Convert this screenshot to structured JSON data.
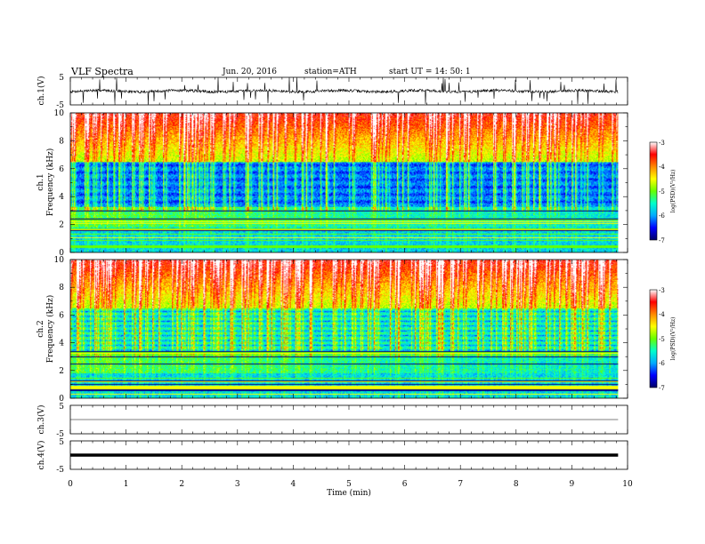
{
  "header": {
    "title": "VLF  Spectra",
    "date": "Jun. 20, 2016",
    "station": "station=ATH",
    "start": "start  UT =   14: 50: 1"
  },
  "chart_data": [
    {
      "type": "line",
      "ylabel": "ch.1(V)",
      "ylim": [
        -5,
        5
      ],
      "yticks": [
        "5",
        "-5"
      ],
      "xlim": [
        0,
        10
      ],
      "data_end_min": 9.83,
      "baseline": 0,
      "series_color": "#000000"
    },
    {
      "type": "heatmap",
      "ylabel_lines": [
        "ch.1",
        "Frequency  (kHz)"
      ],
      "ylim": [
        0,
        10
      ],
      "yticks": [
        "0",
        "2",
        "4",
        "6",
        "8",
        "10"
      ],
      "xlim": [
        0,
        10
      ],
      "data_end_min": 9.83,
      "colorbar": {
        "label": "log(PSD)(V²/Hz)",
        "range": [
          -7,
          -3
        ],
        "ticks": [
          "-3",
          "-4",
          "-5",
          "-6",
          "-7"
        ],
        "colors": [
          "#000066",
          "#0000ff",
          "#00aaff",
          "#00ffcc",
          "#66ff00",
          "#ffff00",
          "#ff8800",
          "#ff0000",
          "#ffffff"
        ]
      }
    },
    {
      "type": "heatmap",
      "ylabel_lines": [
        "ch.2",
        "Frequency  (kHz)"
      ],
      "ylim": [
        0,
        10
      ],
      "yticks": [
        "0",
        "2",
        "4",
        "6",
        "8",
        "10"
      ],
      "xlim": [
        0,
        10
      ],
      "data_end_min": 9.83,
      "colorbar": {
        "label": "log(PSD)(V²/Hz)",
        "range": [
          -7,
          -3
        ],
        "ticks": [
          "-3",
          "-4",
          "-5",
          "-6",
          "-7"
        ],
        "colors": [
          "#000066",
          "#0000ff",
          "#00aaff",
          "#00ffcc",
          "#66ff00",
          "#ffff00",
          "#ff8800",
          "#ff0000",
          "#ffffff"
        ]
      }
    },
    {
      "type": "line",
      "ylabel": "ch.3(V)",
      "ylim": [
        -5,
        5
      ],
      "yticks": [
        "5",
        "-5"
      ],
      "xlim": [
        0,
        10
      ],
      "data_end_min": 9.83,
      "baseline": 0,
      "series_color": "#000000"
    },
    {
      "type": "line",
      "ylabel": "ch.4(V)",
      "ylim": [
        -5,
        5
      ],
      "yticks": [
        "5",
        "-5"
      ],
      "xlim": [
        0,
        10
      ],
      "data_end_min": 9.83,
      "baseline": 0,
      "series_color": "#000000",
      "xlabel": "Time  (min)",
      "xticks": [
        "0",
        "1",
        "2",
        "3",
        "4",
        "5",
        "6",
        "7",
        "8",
        "9",
        "10"
      ]
    }
  ]
}
